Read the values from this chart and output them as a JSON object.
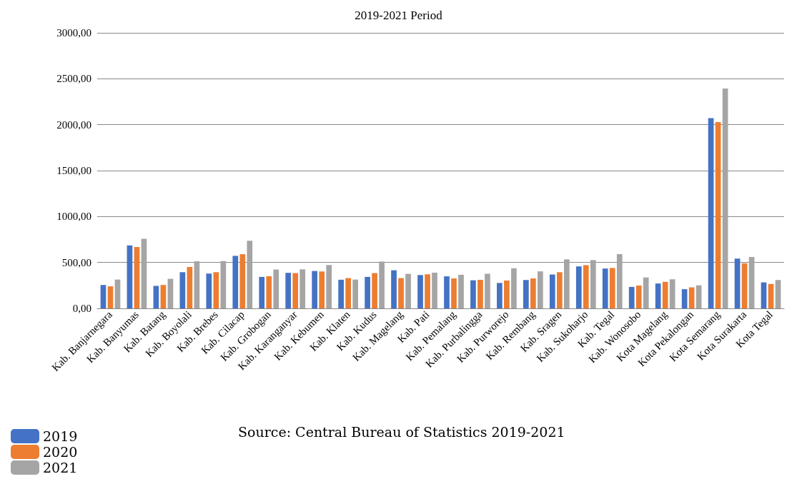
{
  "chart_data": {
    "type": "bar",
    "title": "2019-2021 Period",
    "categories": [
      "Kab. Banjarnegara",
      "Kab. Banyumas",
      "Kab. Batang",
      "Kab. Boyolali",
      "Kab. Brebes",
      "Kab. Cilacap",
      "Kab. Grobogan",
      "Kab. Karanganyar",
      "Kab. Kebumen",
      "Kab. Klaten",
      "Kab. Kudus",
      "Kab. Magelang",
      "Kab. Pati",
      "Kab. Pemalang",
      "Kab. Purbalingga",
      "Kab. Purworejo",
      "Kab. Rembang",
      "Kab. Sragen",
      "Kab. Sukoharjo",
      "Kab. Tegal",
      "Kab. Wonosobo",
      "Kota Magelang",
      "Kota Pekalongan",
      "Kota Semarang",
      "Kota Surakarta",
      "Kota Tegal"
    ],
    "series": [
      {
        "name": "2019",
        "color": "#4472c4",
        "values": [
          255,
          686,
          245,
          394,
          379,
          572,
          343,
          387,
          407,
          312,
          343,
          415,
          363,
          349,
          306,
          277,
          309,
          369,
          457,
          434,
          234,
          271,
          209,
          2071,
          543,
          283
        ]
      },
      {
        "name": "2020",
        "color": "#ed7d31",
        "values": [
          240,
          668,
          255,
          451,
          394,
          590,
          350,
          384,
          402,
          330,
          384,
          330,
          371,
          326,
          311,
          303,
          326,
          394,
          471,
          440,
          249,
          289,
          229,
          2029,
          491,
          266
        ]
      },
      {
        "name": "2021",
        "color": "#a5a5a5",
        "values": [
          314,
          758,
          322,
          513,
          515,
          737,
          423,
          425,
          472,
          314,
          510,
          376,
          389,
          366,
          377,
          437,
          403,
          534,
          526,
          591,
          337,
          317,
          251,
          2394,
          560,
          309
        ]
      }
    ],
    "ylim": [
      0,
      3000
    ],
    "yticks": [
      {
        "value": 0,
        "label": "0,00"
      },
      {
        "value": 500,
        "label": "500,00"
      },
      {
        "value": 1000,
        "label": "1000,00"
      },
      {
        "value": 1500,
        "label": "1500,00"
      },
      {
        "value": 2000,
        "label": "2000,00"
      },
      {
        "value": 2500,
        "label": "2500,00"
      },
      {
        "value": 3000,
        "label": "3000,00"
      }
    ],
    "grid": "y",
    "legend": "bottom left",
    "annotations": [
      "Source: Central Bureau of Statistics 2019-2021"
    ]
  }
}
